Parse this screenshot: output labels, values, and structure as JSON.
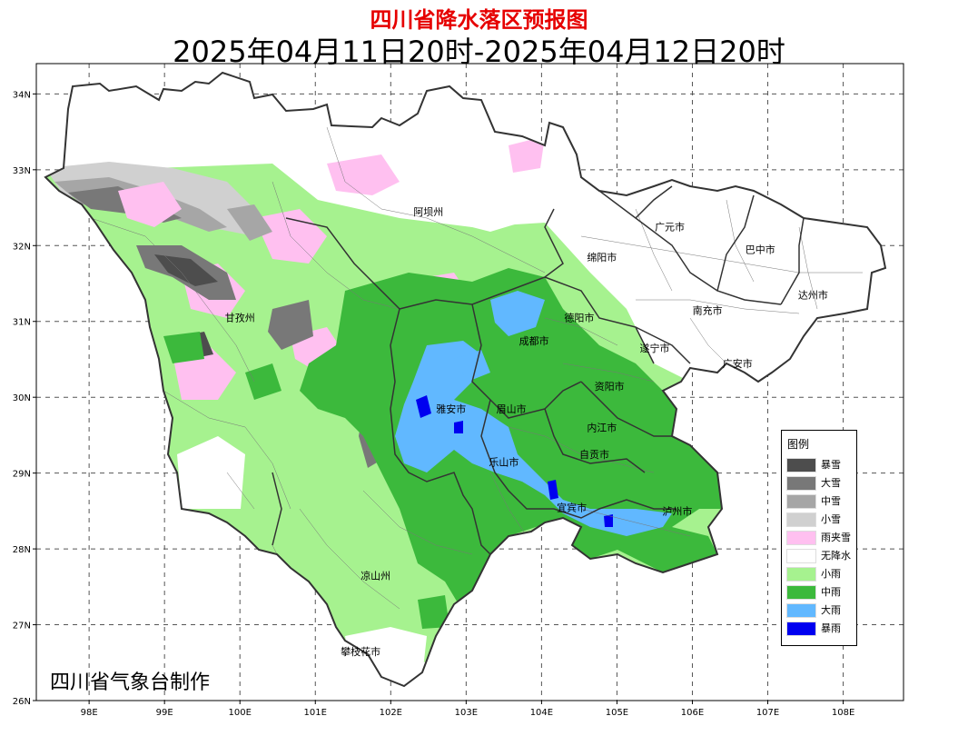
{
  "title": "四川省降水落区预报图",
  "subtitle": "2025年04月11日20时-2025年04月12日20时",
  "credit": "四川省气象台制作",
  "axes": {
    "x_ticks": [
      "98E",
      "99E",
      "100E",
      "101E",
      "102E",
      "103E",
      "104E",
      "105E",
      "106E",
      "107E",
      "108E"
    ],
    "y_ticks": [
      "34N",
      "33N",
      "32N",
      "31N",
      "30N",
      "29N",
      "28N",
      "27N",
      "26N"
    ],
    "x_range": [
      97.3,
      108.8
    ],
    "y_range": [
      26,
      34.4
    ],
    "grid": true
  },
  "legend": {
    "title": "图例",
    "items": [
      {
        "label": "暴雪",
        "color": "#4d4d4d"
      },
      {
        "label": "大雪",
        "color": "#787878"
      },
      {
        "label": "中雪",
        "color": "#a6a6a6"
      },
      {
        "label": "小雪",
        "color": "#d0d0d0"
      },
      {
        "label": "雨夹雪",
        "color": "#ffc0f0"
      },
      {
        "label": "无降水",
        "color": "#ffffff"
      },
      {
        "label": "小雨",
        "color": "#a6f28f"
      },
      {
        "label": "中雨",
        "color": "#3cb93c"
      },
      {
        "label": "大雨",
        "color": "#61b8ff"
      },
      {
        "label": "暴雨",
        "color": "#0000f0"
      }
    ]
  },
  "cities": [
    {
      "name": "阿坝州",
      "lon": 102.5,
      "lat": 32.4
    },
    {
      "name": "甘孜州",
      "lon": 100.0,
      "lat": 31.0
    },
    {
      "name": "广元市",
      "lon": 105.7,
      "lat": 32.2
    },
    {
      "name": "巴中市",
      "lon": 106.9,
      "lat": 31.9
    },
    {
      "name": "绵阳市",
      "lon": 104.8,
      "lat": 31.8
    },
    {
      "name": "达州市",
      "lon": 107.6,
      "lat": 31.3
    },
    {
      "name": "南充市",
      "lon": 106.2,
      "lat": 31.1
    },
    {
      "name": "德阳市",
      "lon": 104.5,
      "lat": 31.0
    },
    {
      "name": "成都市",
      "lon": 103.9,
      "lat": 30.7
    },
    {
      "name": "遂宁市",
      "lon": 105.5,
      "lat": 30.6
    },
    {
      "name": "广安市",
      "lon": 106.6,
      "lat": 30.4
    },
    {
      "name": "资阳市",
      "lon": 104.9,
      "lat": 30.1
    },
    {
      "name": "雅安市",
      "lon": 102.8,
      "lat": 29.8
    },
    {
      "name": "眉山市",
      "lon": 103.6,
      "lat": 29.8
    },
    {
      "name": "内江市",
      "lon": 104.8,
      "lat": 29.55
    },
    {
      "name": "自贡市",
      "lon": 104.7,
      "lat": 29.2
    },
    {
      "name": "乐山市",
      "lon": 103.5,
      "lat": 29.1
    },
    {
      "name": "宜宾市",
      "lon": 104.4,
      "lat": 28.5
    },
    {
      "name": "泸州市",
      "lon": 105.8,
      "lat": 28.45
    },
    {
      "name": "凉山州",
      "lon": 101.8,
      "lat": 27.6
    },
    {
      "name": "攀枝花市",
      "lon": 101.6,
      "lat": 26.6
    }
  ]
}
